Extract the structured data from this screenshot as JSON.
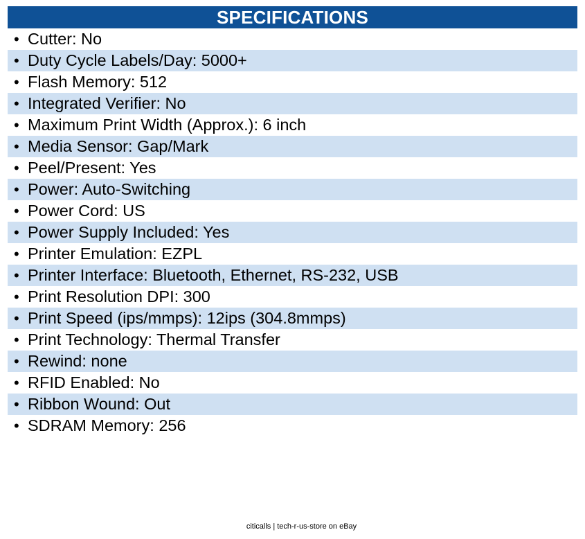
{
  "header": {
    "title": "SPECIFICATIONS"
  },
  "colors": {
    "header_bg": "#0f5196",
    "header_text": "#ffffff",
    "row_shade": "#cfe0f2"
  },
  "bullet": "•",
  "specs": [
    "Cutter: No",
    "Duty Cycle Labels/Day: 5000+",
    "Flash Memory: 512",
    "Integrated Verifier: No",
    "Maximum Print Width (Approx.): 6 inch",
    "Media Sensor: Gap/Mark",
    "Peel/Present: Yes",
    "Power: Auto-Switching",
    "Power Cord: US",
    "Power Supply Included: Yes",
    "Printer Emulation: EZPL",
    "Printer Interface: Bluetooth, Ethernet, RS-232, USB",
    "Print Resolution DPI: 300",
    "Print Speed (ips/mmps): 12ips (304.8mmps)",
    "Print Technology: Thermal Transfer",
    "Rewind: none",
    "RFID Enabled: No",
    "Ribbon Wound: Out",
    "SDRAM Memory: 256"
  ],
  "footer": {
    "text": "citicalls | tech-r-us-store on eBay"
  }
}
